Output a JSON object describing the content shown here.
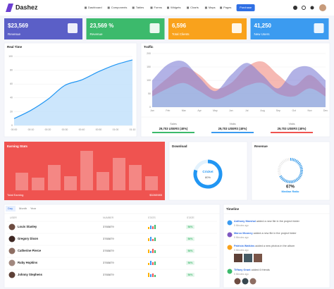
{
  "header": {
    "brand": "Dashez",
    "nav": [
      "Dashboard",
      "Components",
      "Tables",
      "Forms",
      "Widgets",
      "Charts",
      "Maps",
      "Pages"
    ],
    "button": "Purchase"
  },
  "stats": [
    {
      "value": "$23,569",
      "label": "Revenue",
      "color": "#5b5fc7"
    },
    {
      "value": "23,569 %",
      "label": "Revenue",
      "color": "#3cba6c"
    },
    {
      "value": "6,596",
      "label": "Total Clients",
      "color": "#f9a21c"
    },
    {
      "value": "41,250",
      "label": "New Users",
      "color": "#3b9bf0"
    }
  ],
  "realtime": {
    "title": "Real Time",
    "type": "area",
    "color": "#2196f3",
    "categories": [
      "00:00",
      "00:10",
      "00:20",
      "00:30",
      "00:40",
      "00:50",
      "01:00",
      "01:10"
    ],
    "values": [
      10,
      22,
      38,
      58,
      66,
      78,
      88,
      95
    ],
    "ylim": [
      0,
      100
    ],
    "yticks": [
      0,
      20,
      40,
      60,
      80,
      100
    ]
  },
  "traffic": {
    "title": "Traffic",
    "type": "area",
    "categories": [
      "Jan",
      "Feb",
      "Mar",
      "Apr",
      "May",
      "Jun",
      "Jul",
      "Aug",
      "Sep",
      "Oct",
      "Nov",
      "Dec"
    ],
    "ylim": [
      0,
      200
    ],
    "yticks": [
      0,
      50,
      100,
      150,
      200
    ],
    "series": [
      {
        "color": "#f08a80",
        "values": [
          60,
          110,
          150,
          120,
          70,
          90,
          150,
          170,
          120,
          80,
          120,
          70
        ]
      },
      {
        "color": "#7f7fd5",
        "values": [
          100,
          160,
          170,
          110,
          60,
          120,
          165,
          120,
          70,
          140,
          150,
          100
        ]
      },
      {
        "color": "#9ecdf5",
        "values": [
          40,
          70,
          90,
          60,
          30,
          50,
          80,
          90,
          50,
          40,
          70,
          40
        ]
      }
    ],
    "summary": [
      {
        "label": "Sales",
        "value": "29,703 USERS (40%)",
        "color": "#3cba6c"
      },
      {
        "label": "Visits",
        "value": "29,703 USERS (40%)",
        "color": "#3b9bf0"
      },
      {
        "label": "Visits",
        "value": "29,703 USERS (40%)",
        "color": "#ef5350"
      }
    ]
  },
  "earning": {
    "title": "Earning Stats",
    "type": "bar",
    "values": [
      25,
      18,
      36,
      20,
      56,
      26,
      46,
      36,
      20
    ],
    "total_label": "Total Earning",
    "total": "$3265985"
  },
  "download": {
    "title": "Download",
    "type": "donut",
    "label": "Cricket",
    "value": 80,
    "value_label": "80%"
  },
  "revenue": {
    "title": "Revenue",
    "type": "gauge",
    "value": 67,
    "value_label": "67%",
    "label": "Median Ratio"
  },
  "table": {
    "tabs": [
      "Day",
      "Month",
      "Year"
    ],
    "columns": [
      "USER",
      "NUMBER",
      "STATS",
      "STATE"
    ],
    "rows": [
      {
        "user": "Louis Stanley",
        "number": 3765879,
        "stats": [
          3,
          5,
          4,
          6
        ],
        "state": "54%"
      },
      {
        "user": "Gregory Dixon",
        "number": 3765879,
        "stats": [
          4,
          6,
          3,
          5
        ],
        "state": "54%"
      },
      {
        "user": "Catherine Pierce",
        "number": 3765879,
        "stats": [
          5,
          3,
          6,
          4
        ],
        "state": "54%"
      },
      {
        "user": "Ruby Hopkins",
        "number": 3765879,
        "stats": [
          3,
          6,
          4,
          5
        ],
        "state": "54%"
      },
      {
        "user": "Johnny Stephens",
        "number": 3765879,
        "stats": [
          6,
          4,
          5,
          3
        ],
        "state": "54%"
      }
    ]
  },
  "timeline": {
    "title": "Timeline",
    "items": [
      {
        "name": "Anthony Marshal",
        "text": "added a new file in the project folder",
        "time": "5 Minutes ago"
      },
      {
        "name": "Marco Mooney",
        "text": "added a new file in the project folder",
        "time": "5 Minutes ago"
      },
      {
        "name": "Patricia Watkins",
        "text": "added a new photos in the album",
        "time": "5 Minutes ago"
      },
      {
        "name": "Tiffany Grant",
        "text": "added 6 friends",
        "time": "5 Minutes ago"
      }
    ]
  }
}
